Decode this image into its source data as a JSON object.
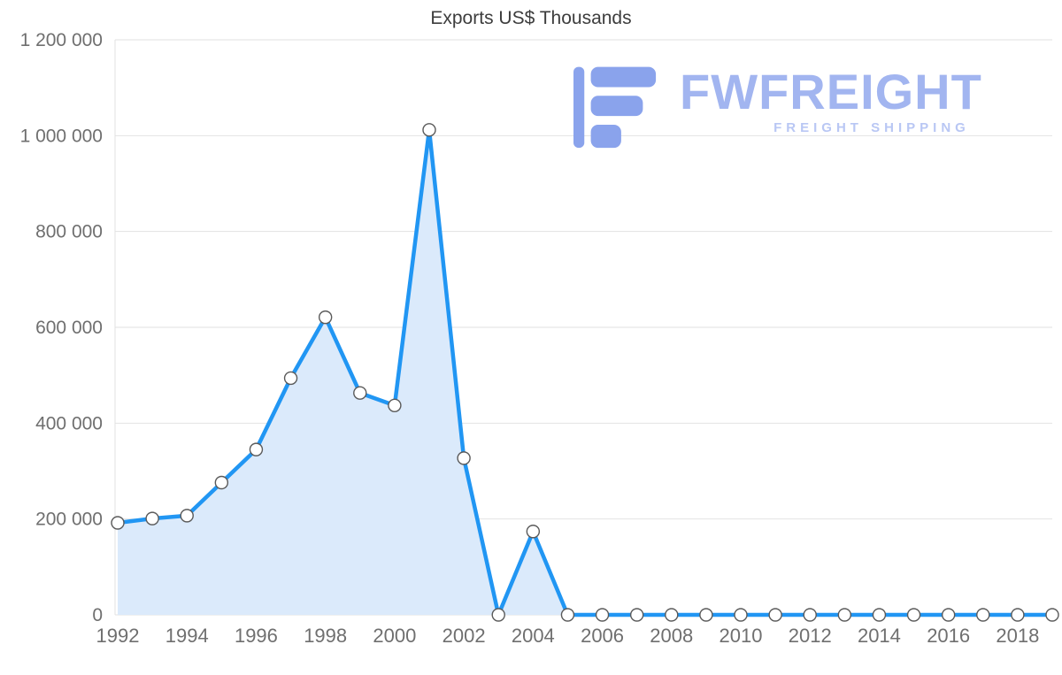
{
  "title": "Exports US$ Thousands",
  "watermark": {
    "brand": "FWFREIGHT",
    "tagline": "FREIGHT SHIPPING",
    "brand_color": "#a2b5f0",
    "icon_color": "#8aa3ec",
    "tagline_color": "#b9c7f4"
  },
  "chart_data": {
    "type": "area",
    "title": "Exports US$ Thousands",
    "xlabel": "",
    "ylabel": "",
    "x": [
      1992,
      1993,
      1994,
      1995,
      1996,
      1997,
      1998,
      1999,
      2000,
      2001,
      2002,
      2003,
      2004,
      2005,
      2006,
      2007,
      2008,
      2009,
      2010,
      2011,
      2012,
      2013,
      2014,
      2015,
      2016,
      2017,
      2018,
      2019
    ],
    "values": [
      192000,
      201000,
      207000,
      276000,
      345000,
      494000,
      621000,
      463000,
      437000,
      1012000,
      327000,
      0,
      174000,
      0,
      0,
      0,
      0,
      0,
      0,
      0,
      0,
      0,
      0,
      0,
      0,
      0,
      0,
      0
    ],
    "ylim": [
      0,
      1200000
    ],
    "yticks": [
      0,
      200000,
      400000,
      600000,
      800000,
      1000000,
      1200000
    ],
    "ytick_labels": [
      "0",
      "200 000",
      "400 000",
      "600 000",
      "800 000",
      "1 000 000",
      "1 200 000"
    ],
    "xticks": [
      1992,
      1994,
      1996,
      1998,
      2000,
      2002,
      2004,
      2006,
      2008,
      2010,
      2012,
      2014,
      2016,
      2018
    ],
    "grid": true,
    "legend": "none",
    "line_color": "#2196f3",
    "fill_color": "#dbeafb",
    "grid_color": "#e2e2e2",
    "axis_text_color": "#6f6f6f",
    "marker": {
      "fill": "#ffffff",
      "stroke": "#5a5a5a",
      "radius": 7
    }
  }
}
